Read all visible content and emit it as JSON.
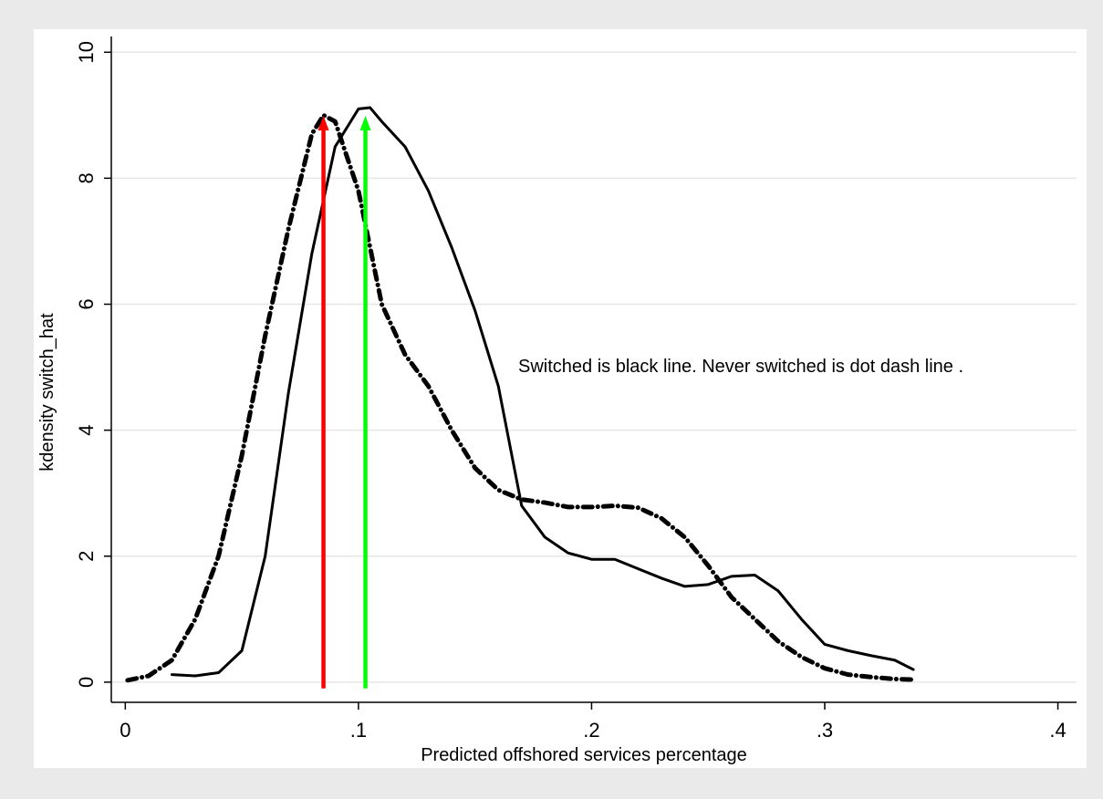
{
  "chart_data": {
    "type": "line",
    "xlabel": "Predicted offshored services percentage",
    "ylabel": "kdensity switch_hat",
    "annotation": "Switched is black line. Never switched is dot dash line .",
    "xlim": [
      -0.006,
      0.408
    ],
    "ylim": [
      -0.32,
      10.25
    ],
    "xticks": [
      0,
      {
        "value": 0.1,
        "label": ".1"
      },
      {
        "value": 0.2,
        "label": ".2"
      },
      {
        "value": 0.3,
        "label": ".3"
      },
      {
        "value": 0.4,
        "label": ".4"
      }
    ],
    "yticks": [
      0,
      2,
      4,
      6,
      8,
      10
    ],
    "grid": true,
    "series": [
      {
        "color": "#000000",
        "style": "solid",
        "x": [
          0.02,
          0.03,
          0.04,
          0.05,
          0.06,
          0.07,
          0.08,
          0.09,
          0.1,
          0.105,
          0.11,
          0.12,
          0.13,
          0.14,
          0.15,
          0.16,
          0.17,
          0.18,
          0.19,
          0.2,
          0.21,
          0.22,
          0.23,
          0.24,
          0.25,
          0.26,
          0.27,
          0.28,
          0.29,
          0.3,
          0.31,
          0.32,
          0.33,
          0.338
        ],
        "values": [
          0.12,
          0.1,
          0.15,
          0.5,
          2.0,
          4.6,
          6.8,
          8.5,
          9.1,
          9.12,
          8.9,
          8.5,
          7.8,
          6.9,
          5.9,
          4.7,
          2.8,
          2.3,
          2.05,
          1.95,
          1.95,
          1.8,
          1.65,
          1.52,
          1.55,
          1.68,
          1.7,
          1.45,
          1.0,
          0.6,
          0.5,
          0.42,
          0.35,
          0.2
        ]
      },
      {
        "color": "#000000",
        "style": "dotdash",
        "x": [
          0.001,
          0.01,
          0.02,
          0.03,
          0.04,
          0.05,
          0.06,
          0.07,
          0.08,
          0.085,
          0.09,
          0.1,
          0.11,
          0.12,
          0.13,
          0.14,
          0.15,
          0.16,
          0.17,
          0.18,
          0.19,
          0.2,
          0.21,
          0.22,
          0.23,
          0.24,
          0.25,
          0.26,
          0.27,
          0.28,
          0.29,
          0.3,
          0.31,
          0.32,
          0.33,
          0.338
        ],
        "values": [
          0.03,
          0.1,
          0.35,
          1.0,
          2.0,
          3.6,
          5.5,
          7.2,
          8.7,
          9.0,
          8.9,
          7.8,
          6.0,
          5.2,
          4.7,
          4.0,
          3.4,
          3.05,
          2.9,
          2.85,
          2.78,
          2.78,
          2.8,
          2.77,
          2.6,
          2.3,
          1.85,
          1.35,
          1.0,
          0.65,
          0.4,
          0.22,
          0.12,
          0.08,
          0.05,
          0.04
        ]
      }
    ],
    "arrows": [
      {
        "color": "#ff0000",
        "x": 0.085,
        "y_from": -0.1,
        "y_to": 8.99
      },
      {
        "color": "#00ff00",
        "x": 0.103,
        "y_from": -0.1,
        "y_to": 8.99
      }
    ]
  }
}
